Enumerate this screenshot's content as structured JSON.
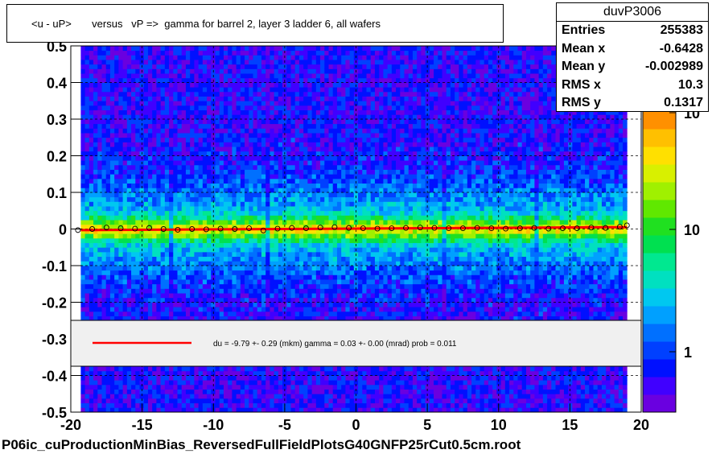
{
  "title": "<u - uP>       versus   vP =>  gamma for barrel 2, layer 3 ladder 6, all wafers",
  "stats": {
    "name": "duvP3006",
    "rows": [
      {
        "label": "Entries",
        "value": "255383"
      },
      {
        "label": "Mean x",
        "value": "-0.6428"
      },
      {
        "label": "Mean y",
        "value": "-0.002989"
      },
      {
        "label": "RMS x",
        "value": "10.3"
      },
      {
        "label": "RMS y",
        "value": "0.1317"
      }
    ]
  },
  "fit_text": "du =   -9.79 +-  0.29 (mkm) gamma =    0.03 +-  0.00 (mrad) prob = 0.011",
  "footer": "P06ic_cuProductionMinBias_ReversedFullFieldPlotsG40GNFP25rCut0.5cm.root",
  "colors": {
    "fit_line": "#ff0000",
    "grid": "#000000",
    "palette": [
      "#6a00e0",
      "#4000ff",
      "#0010ff",
      "#0040ff",
      "#0070ff",
      "#00a0ff",
      "#00c8f0",
      "#00e0c0",
      "#00e890",
      "#00e050",
      "#20e020",
      "#60e800",
      "#a0f000",
      "#d8f000",
      "#ffe000",
      "#ffc000",
      "#ff9000"
    ]
  },
  "chart_data": {
    "type": "heatmap",
    "title": "<u - uP>       versus   vP =>  gamma for barrel 2, layer 3 ladder 6, all wafers",
    "x_ticks": [
      "-20",
      "-15",
      "-10",
      "-5",
      "0",
      "5",
      "10",
      "15",
      "20"
    ],
    "y_ticks": [
      "-0.5",
      "-0.4",
      "-0.3",
      "-0.2",
      "-0.1",
      "0",
      "0.1",
      "0.2",
      "0.3",
      "0.4",
      "0.5"
    ],
    "z_ticks": [
      "1",
      "10",
      "10"
    ],
    "z_tick_exponent": "2",
    "xlim": [
      -20,
      20
    ],
    "ylim": [
      -0.5,
      0.5
    ],
    "z_log": true,
    "grid": true,
    "fit_line": {
      "y_at_x_min": -0.003,
      "y_at_x_max": 0.005
    },
    "profile_points": [
      {
        "x": -19.5,
        "y": -0.003
      },
      {
        "x": -18.5,
        "y": 0.0
      },
      {
        "x": -17.5,
        "y": 0.004
      },
      {
        "x": -16.5,
        "y": 0.002
      },
      {
        "x": -15.5,
        "y": 0.001
      },
      {
        "x": -14.5,
        "y": 0.003
      },
      {
        "x": -13.5,
        "y": 0.0
      },
      {
        "x": -12.5,
        "y": -0.002
      },
      {
        "x": -11.5,
        "y": 0.0
      },
      {
        "x": -10.5,
        "y": -0.001
      },
      {
        "x": -9.5,
        "y": 0.001
      },
      {
        "x": -8.5,
        "y": 0.0
      },
      {
        "x": -7.5,
        "y": 0.002
      },
      {
        "x": -6.5,
        "y": -0.004
      },
      {
        "x": -5.5,
        "y": 0.001
      },
      {
        "x": -4.5,
        "y": 0.003
      },
      {
        "x": -3.5,
        "y": 0.002
      },
      {
        "x": -2.5,
        "y": 0.004
      },
      {
        "x": -1.5,
        "y": 0.005
      },
      {
        "x": -0.5,
        "y": 0.003
      },
      {
        "x": 0.5,
        "y": 0.002
      },
      {
        "x": 1.5,
        "y": 0.001
      },
      {
        "x": 2.5,
        "y": 0.002
      },
      {
        "x": 3.5,
        "y": 0.003
      },
      {
        "x": 4.5,
        "y": 0.004
      },
      {
        "x": 5.5,
        "y": 0.003
      },
      {
        "x": 6.5,
        "y": 0.002
      },
      {
        "x": 7.5,
        "y": 0.002
      },
      {
        "x": 8.5,
        "y": 0.003
      },
      {
        "x": 9.5,
        "y": 0.002
      },
      {
        "x": 10.5,
        "y": 0.001
      },
      {
        "x": 11.5,
        "y": 0.002
      },
      {
        "x": 12.5,
        "y": 0.003
      },
      {
        "x": 13.5,
        "y": 0.001
      },
      {
        "x": 14.5,
        "y": 0.002
      },
      {
        "x": 15.5,
        "y": 0.002
      },
      {
        "x": 16.5,
        "y": 0.004
      },
      {
        "x": 17.5,
        "y": 0.003
      },
      {
        "x": 18.5,
        "y": 0.006
      },
      {
        "x": 19.0,
        "y": 0.01
      }
    ]
  }
}
